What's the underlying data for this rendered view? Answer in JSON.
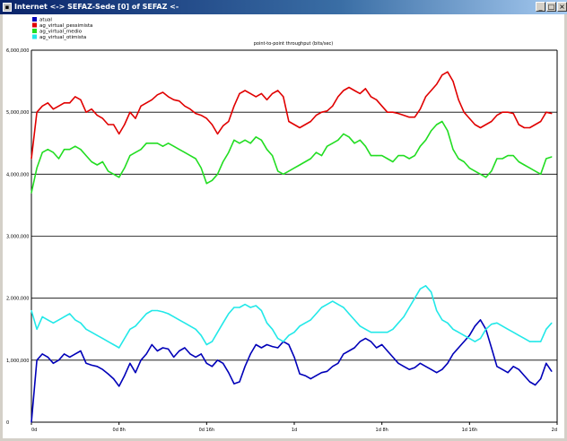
{
  "window": {
    "title": "Internet <-> SEFAZ-Sede [0] of SEFAZ <-",
    "minimize_glyph": "_",
    "maximize_glyph": "□",
    "close_glyph": "×",
    "app_icon": "app-icon"
  },
  "legend": [
    {
      "name": "atual",
      "color": "#0000b8"
    },
    {
      "name": "ag_virtual_pessimista",
      "color": "#e00000"
    },
    {
      "name": "ag_virtual_medio",
      "color": "#22dd22"
    },
    {
      "name": "ag_virtual_otimista",
      "color": "#22e8e8"
    }
  ],
  "chart_data": {
    "type": "line",
    "title": "point-to-point throughput (bits/sec)",
    "xlabel": "",
    "ylabel": "",
    "ylim": [
      0,
      6000000
    ],
    "yticks": [
      {
        "value": 0,
        "label": "0"
      },
      {
        "value": 1000000,
        "label": "1,000,000"
      },
      {
        "value": 2000000,
        "label": "2,000,000"
      },
      {
        "value": 3000000,
        "label": "3,000,000"
      },
      {
        "value": 4000000,
        "label": "4,000,000"
      },
      {
        "value": 5000000,
        "label": "5,000,000"
      },
      {
        "value": 6000000,
        "label": "6,000,000"
      }
    ],
    "xlim": [
      0,
      48
    ],
    "xticks": [
      {
        "value": 0,
        "label": "0d"
      },
      {
        "value": 8,
        "label": "0d 8h"
      },
      {
        "value": 16,
        "label": "0d 16h"
      },
      {
        "value": 24,
        "label": "1d"
      },
      {
        "value": 32,
        "label": "1d 8h"
      },
      {
        "value": 40,
        "label": "1d 16h"
      },
      {
        "value": 48,
        "label": "2d"
      }
    ],
    "grid": "horizontal",
    "legend_position": "top-left",
    "x": [
      0,
      0.5,
      1,
      1.5,
      2,
      2.5,
      3,
      3.5,
      4,
      4.5,
      5,
      5.5,
      6,
      6.5,
      7,
      7.5,
      8,
      8.5,
      9,
      9.5,
      10,
      10.5,
      11,
      11.5,
      12,
      12.5,
      13,
      13.5,
      14,
      14.5,
      15,
      15.5,
      16,
      16.5,
      17,
      17.5,
      18,
      18.5,
      19,
      19.5,
      20,
      20.5,
      21,
      21.5,
      22,
      22.5,
      23,
      23.5,
      24,
      24.5,
      25,
      25.5,
      26,
      26.5,
      27,
      27.5,
      28,
      28.5,
      29,
      29.5,
      30,
      30.5,
      31,
      31.5,
      32,
      32.5,
      33,
      33.5,
      34,
      34.5,
      35,
      35.5,
      36,
      36.5,
      37,
      37.5,
      38,
      38.5,
      39,
      39.5,
      40,
      40.5,
      41,
      41.5,
      42,
      42.5,
      43,
      43.5,
      44,
      44.5,
      45,
      45.5,
      46,
      46.5,
      47,
      47.5
    ],
    "series": [
      {
        "name": "atual",
        "color": "#0000b8",
        "values": [
          0,
          1000000,
          1100000,
          1050000,
          950000,
          1000000,
          1100000,
          1050000,
          1100000,
          1150000,
          950000,
          920000,
          900000,
          850000,
          780000,
          700000,
          580000,
          750000,
          950000,
          800000,
          1000000,
          1100000,
          1250000,
          1150000,
          1200000,
          1180000,
          1050000,
          1150000,
          1200000,
          1100000,
          1050000,
          1100000,
          950000,
          900000,
          1000000,
          950000,
          800000,
          620000,
          650000,
          900000,
          1100000,
          1250000,
          1200000,
          1250000,
          1220000,
          1200000,
          1300000,
          1250000,
          1050000,
          780000,
          750000,
          700000,
          750000,
          800000,
          820000,
          900000,
          950000,
          1100000,
          1150000,
          1200000,
          1300000,
          1350000,
          1300000,
          1200000,
          1250000,
          1150000,
          1050000,
          950000,
          900000,
          850000,
          880000,
          950000,
          900000,
          850000,
          800000,
          850000,
          950000,
          1100000,
          1200000,
          1300000,
          1400000,
          1550000,
          1650000,
          1500000,
          1200000,
          900000,
          850000,
          800000,
          900000,
          850000,
          750000,
          650000,
          600000,
          700000,
          950000,
          820000
        ]
      },
      {
        "name": "ag_virtual_pessimista",
        "color": "#e00000",
        "values": [
          4250000,
          5000000,
          5100000,
          5150000,
          5050000,
          5100000,
          5150000,
          5150000,
          5250000,
          5200000,
          5000000,
          5050000,
          4950000,
          4900000,
          4800000,
          4800000,
          4650000,
          4800000,
          5000000,
          4900000,
          5100000,
          5150000,
          5200000,
          5280000,
          5320000,
          5250000,
          5200000,
          5180000,
          5100000,
          5050000,
          4980000,
          4950000,
          4900000,
          4800000,
          4650000,
          4780000,
          4850000,
          5100000,
          5300000,
          5350000,
          5300000,
          5250000,
          5300000,
          5200000,
          5300000,
          5350000,
          5250000,
          4850000,
          4800000,
          4750000,
          4800000,
          4850000,
          4950000,
          5000000,
          5020000,
          5100000,
          5250000,
          5350000,
          5400000,
          5350000,
          5300000,
          5380000,
          5250000,
          5200000,
          5100000,
          5000000,
          5000000,
          4980000,
          4950000,
          4920000,
          4920000,
          5050000,
          5250000,
          5350000,
          5450000,
          5600000,
          5650000,
          5500000,
          5200000,
          5000000,
          4900000,
          4800000,
          4750000,
          4800000,
          4850000,
          4950000,
          5000000,
          5000000,
          4980000,
          4800000,
          4750000,
          4750000,
          4800000,
          4850000,
          5000000,
          4980000
        ]
      },
      {
        "name": "ag_virtual_medio",
        "color": "#22dd22",
        "values": [
          3700000,
          4100000,
          4350000,
          4400000,
          4350000,
          4250000,
          4400000,
          4400000,
          4450000,
          4400000,
          4300000,
          4200000,
          4150000,
          4200000,
          4050000,
          4000000,
          3950000,
          4100000,
          4300000,
          4350000,
          4400000,
          4500000,
          4500000,
          4500000,
          4450000,
          4500000,
          4450000,
          4400000,
          4350000,
          4300000,
          4250000,
          4100000,
          3850000,
          3900000,
          4000000,
          4200000,
          4350000,
          4550000,
          4500000,
          4550000,
          4500000,
          4600000,
          4550000,
          4400000,
          4300000,
          4050000,
          4000000,
          4050000,
          4100000,
          4150000,
          4200000,
          4250000,
          4350000,
          4300000,
          4450000,
          4500000,
          4550000,
          4650000,
          4600000,
          4500000,
          4550000,
          4450000,
          4300000,
          4300000,
          4300000,
          4250000,
          4200000,
          4300000,
          4300000,
          4250000,
          4300000,
          4450000,
          4550000,
          4700000,
          4800000,
          4850000,
          4700000,
          4400000,
          4250000,
          4200000,
          4100000,
          4050000,
          4000000,
          3950000,
          4050000,
          4250000,
          4250000,
          4300000,
          4300000,
          4200000,
          4150000,
          4100000,
          4050000,
          4000000,
          4250000,
          4280000
        ]
      },
      {
        "name": "ag_virtual_otimista",
        "color": "#22e8e8",
        "values": [
          1800000,
          1500000,
          1700000,
          1650000,
          1600000,
          1650000,
          1700000,
          1750000,
          1650000,
          1600000,
          1500000,
          1450000,
          1400000,
          1350000,
          1300000,
          1250000,
          1200000,
          1350000,
          1500000,
          1550000,
          1650000,
          1750000,
          1800000,
          1800000,
          1780000,
          1750000,
          1700000,
          1650000,
          1600000,
          1550000,
          1500000,
          1400000,
          1250000,
          1300000,
          1450000,
          1600000,
          1750000,
          1850000,
          1850000,
          1900000,
          1850000,
          1880000,
          1800000,
          1600000,
          1500000,
          1350000,
          1300000,
          1400000,
          1450000,
          1550000,
          1600000,
          1650000,
          1750000,
          1850000,
          1900000,
          1950000,
          1900000,
          1850000,
          1750000,
          1650000,
          1550000,
          1500000,
          1450000,
          1450000,
          1450000,
          1450000,
          1500000,
          1600000,
          1700000,
          1850000,
          2000000,
          2150000,
          2200000,
          2100000,
          1800000,
          1650000,
          1600000,
          1500000,
          1450000,
          1400000,
          1350000,
          1300000,
          1350000,
          1500000,
          1580000,
          1600000,
          1550000,
          1500000,
          1450000,
          1400000,
          1350000,
          1300000,
          1300000,
          1300000,
          1500000,
          1600000
        ]
      }
    ]
  }
}
